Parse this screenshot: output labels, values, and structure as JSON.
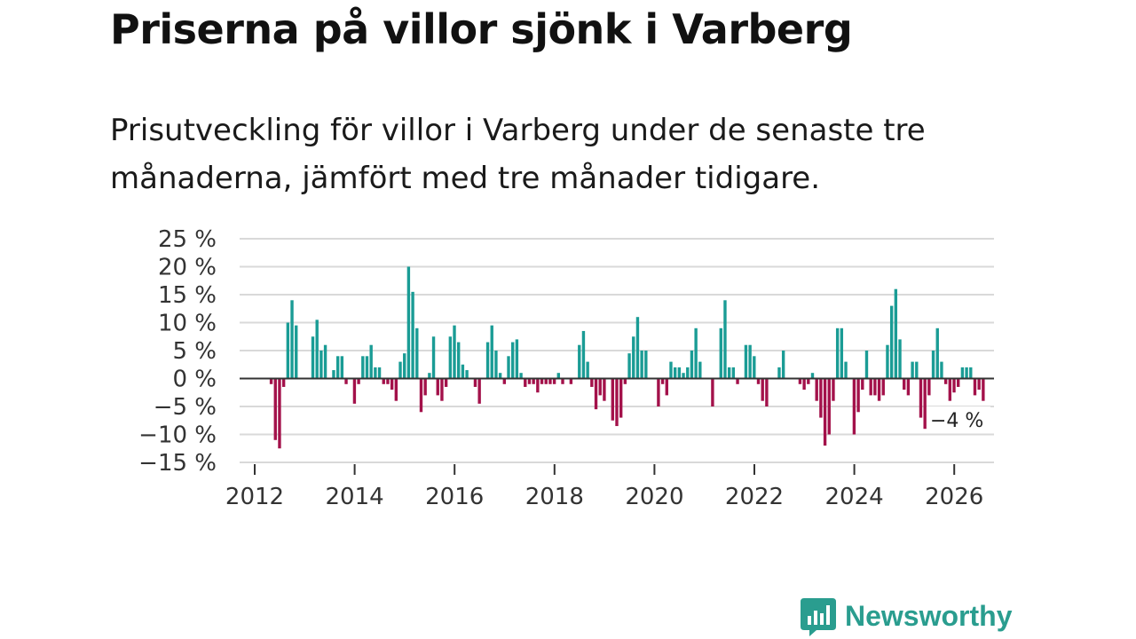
{
  "title": "Priserna på villor sjönk i Varberg",
  "subtitle": "Prisutveckling för villor i Varberg under de senaste tre månaderna, jämfört med tre månader tidigare.",
  "brand": {
    "name": "Newsworthy",
    "icon": "newsworthy-chart-bubble-icon"
  },
  "colors": {
    "positive": "#1a9c95",
    "negative": "#a3114a",
    "grid": "#d9d9d9",
    "zero": "#333333",
    "brand": "#2a9d8f"
  },
  "chart_data": {
    "type": "bar",
    "title": "Priserna på villor sjönk i Varberg",
    "xlabel": "",
    "ylabel": "",
    "ylim": [
      -15,
      25
    ],
    "xlim": [
      2012,
      2026.8
    ],
    "yticks": [
      25,
      20,
      15,
      10,
      5,
      0,
      -5,
      -10,
      -15
    ],
    "ytick_labels": [
      "25 %",
      "20 %",
      "15 %",
      "10 %",
      "5 %",
      "0 %",
      "−5 %",
      "−10 %",
      "−15 %"
    ],
    "xticks": [
      2012,
      2014,
      2016,
      2018,
      2020,
      2022,
      2024,
      2026
    ],
    "xtick_labels": [
      "2012",
      "2014",
      "2016",
      "2018",
      "2020",
      "2022",
      "2024",
      "2026"
    ],
    "end_label": "−4 %",
    "series_start": 2012.33,
    "step_months": 1,
    "values": [
      -1,
      -11,
      -12.5,
      -1.5,
      10,
      14,
      9.5,
      0,
      0,
      0,
      7.5,
      10.5,
      5,
      6,
      0,
      1.5,
      4,
      4,
      -1,
      0,
      -4.5,
      -1,
      4,
      4,
      6,
      2,
      2,
      -1,
      -1,
      -2,
      -4,
      3,
      4.5,
      20,
      15.5,
      9,
      -6,
      -3,
      1,
      7.5,
      -3,
      -4,
      -1.5,
      7.5,
      9.5,
      6.5,
      2.5,
      1.5,
      0,
      -1.5,
      -4.5,
      0,
      6.5,
      9.5,
      5,
      1,
      -1,
      4,
      6.5,
      7,
      1,
      -1.5,
      -1,
      -1,
      -2.5,
      -1,
      -1,
      -1,
      -1,
      1,
      -1,
      0,
      -1,
      0,
      6,
      8.5,
      3,
      -1.5,
      -5.5,
      -3,
      -4,
      0,
      -7.5,
      -8.5,
      -7,
      -1,
      4.5,
      7.5,
      11,
      5,
      5,
      0,
      0,
      -5,
      -1,
      -3,
      3,
      2,
      2,
      1,
      2,
      5,
      9,
      3,
      0,
      0,
      -5,
      0,
      9,
      14,
      2,
      2,
      -1,
      0,
      6,
      6,
      4,
      -1,
      -4,
      -5,
      0,
      0,
      2,
      5,
      0,
      0,
      0,
      -1,
      -2,
      -1,
      1,
      -4,
      -7,
      -12,
      -10,
      -4,
      9,
      9,
      3,
      0,
      -10,
      -6,
      -2,
      5,
      -3,
      -3,
      -4,
      -3,
      6,
      13,
      16,
      7,
      -2,
      -3,
      3,
      3,
      -7,
      -9,
      -3,
      5,
      9,
      3,
      -1,
      -4,
      -2.5,
      -1.5,
      2,
      2,
      2,
      -3,
      -2,
      -4
    ]
  }
}
